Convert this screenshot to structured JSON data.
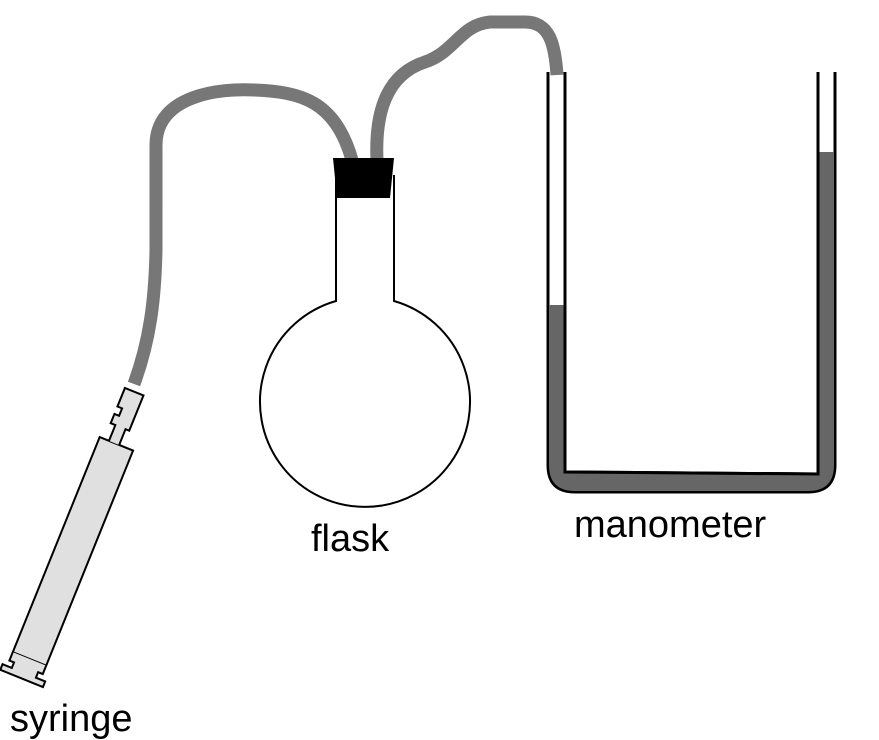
{
  "labels": {
    "syringe": "syringe",
    "flask": "flask",
    "manometer": "manometer"
  },
  "colors": {
    "tubing": "#777777",
    "mercury": "#666666",
    "stopper": "#000000",
    "syringe_barrel": "#e0e0e0",
    "outline": "#000000",
    "background": "#ffffff"
  }
}
